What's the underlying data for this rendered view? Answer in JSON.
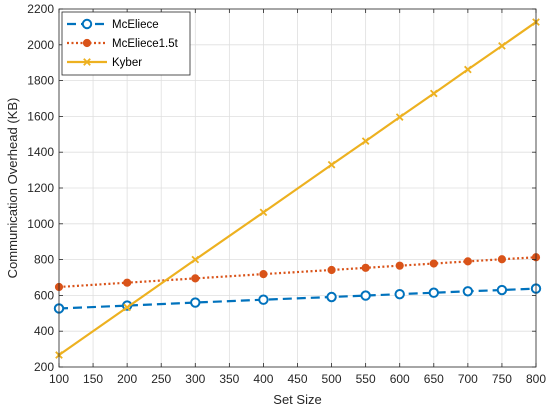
{
  "chart_data": {
    "type": "line",
    "title": "",
    "xlabel": "Set Size",
    "ylabel": "Communication Overhead (KB)",
    "xlim": [
      100,
      800
    ],
    "ylim": [
      200,
      2200
    ],
    "xticks": [
      100,
      150,
      200,
      250,
      300,
      350,
      400,
      450,
      500,
      550,
      600,
      650,
      700,
      750,
      800
    ],
    "yticks": [
      200,
      400,
      600,
      800,
      1000,
      1200,
      1400,
      1600,
      1800,
      2000,
      2200
    ],
    "grid": true,
    "legend_position": "top-left",
    "series": [
      {
        "name": "McEliece",
        "color": "#0072BD",
        "line_style": "dashed",
        "marker": "circle",
        "x": [
          100,
          200,
          300,
          400,
          500,
          550,
          600,
          650,
          700,
          750,
          800
        ],
        "y": [
          527,
          543,
          560,
          576,
          591,
          599,
          607,
          615,
          623,
          630,
          638
        ]
      },
      {
        "name": "McEliece1.5t",
        "color": "#D95319",
        "line_style": "dotted",
        "marker": "filled-circle",
        "x": [
          100,
          200,
          300,
          400,
          500,
          550,
          600,
          650,
          700,
          750,
          800
        ],
        "y": [
          647,
          671,
          695,
          719,
          742,
          754,
          766,
          778,
          790,
          802,
          813
        ]
      },
      {
        "name": "Kyber",
        "color": "#EDB120",
        "line_style": "solid",
        "marker": "x",
        "x": [
          100,
          200,
          300,
          400,
          500,
          550,
          600,
          650,
          700,
          750,
          800
        ],
        "y": [
          267,
          533,
          800,
          1064,
          1330,
          1462,
          1596,
          1728,
          1862,
          1994,
          2127
        ]
      }
    ]
  }
}
